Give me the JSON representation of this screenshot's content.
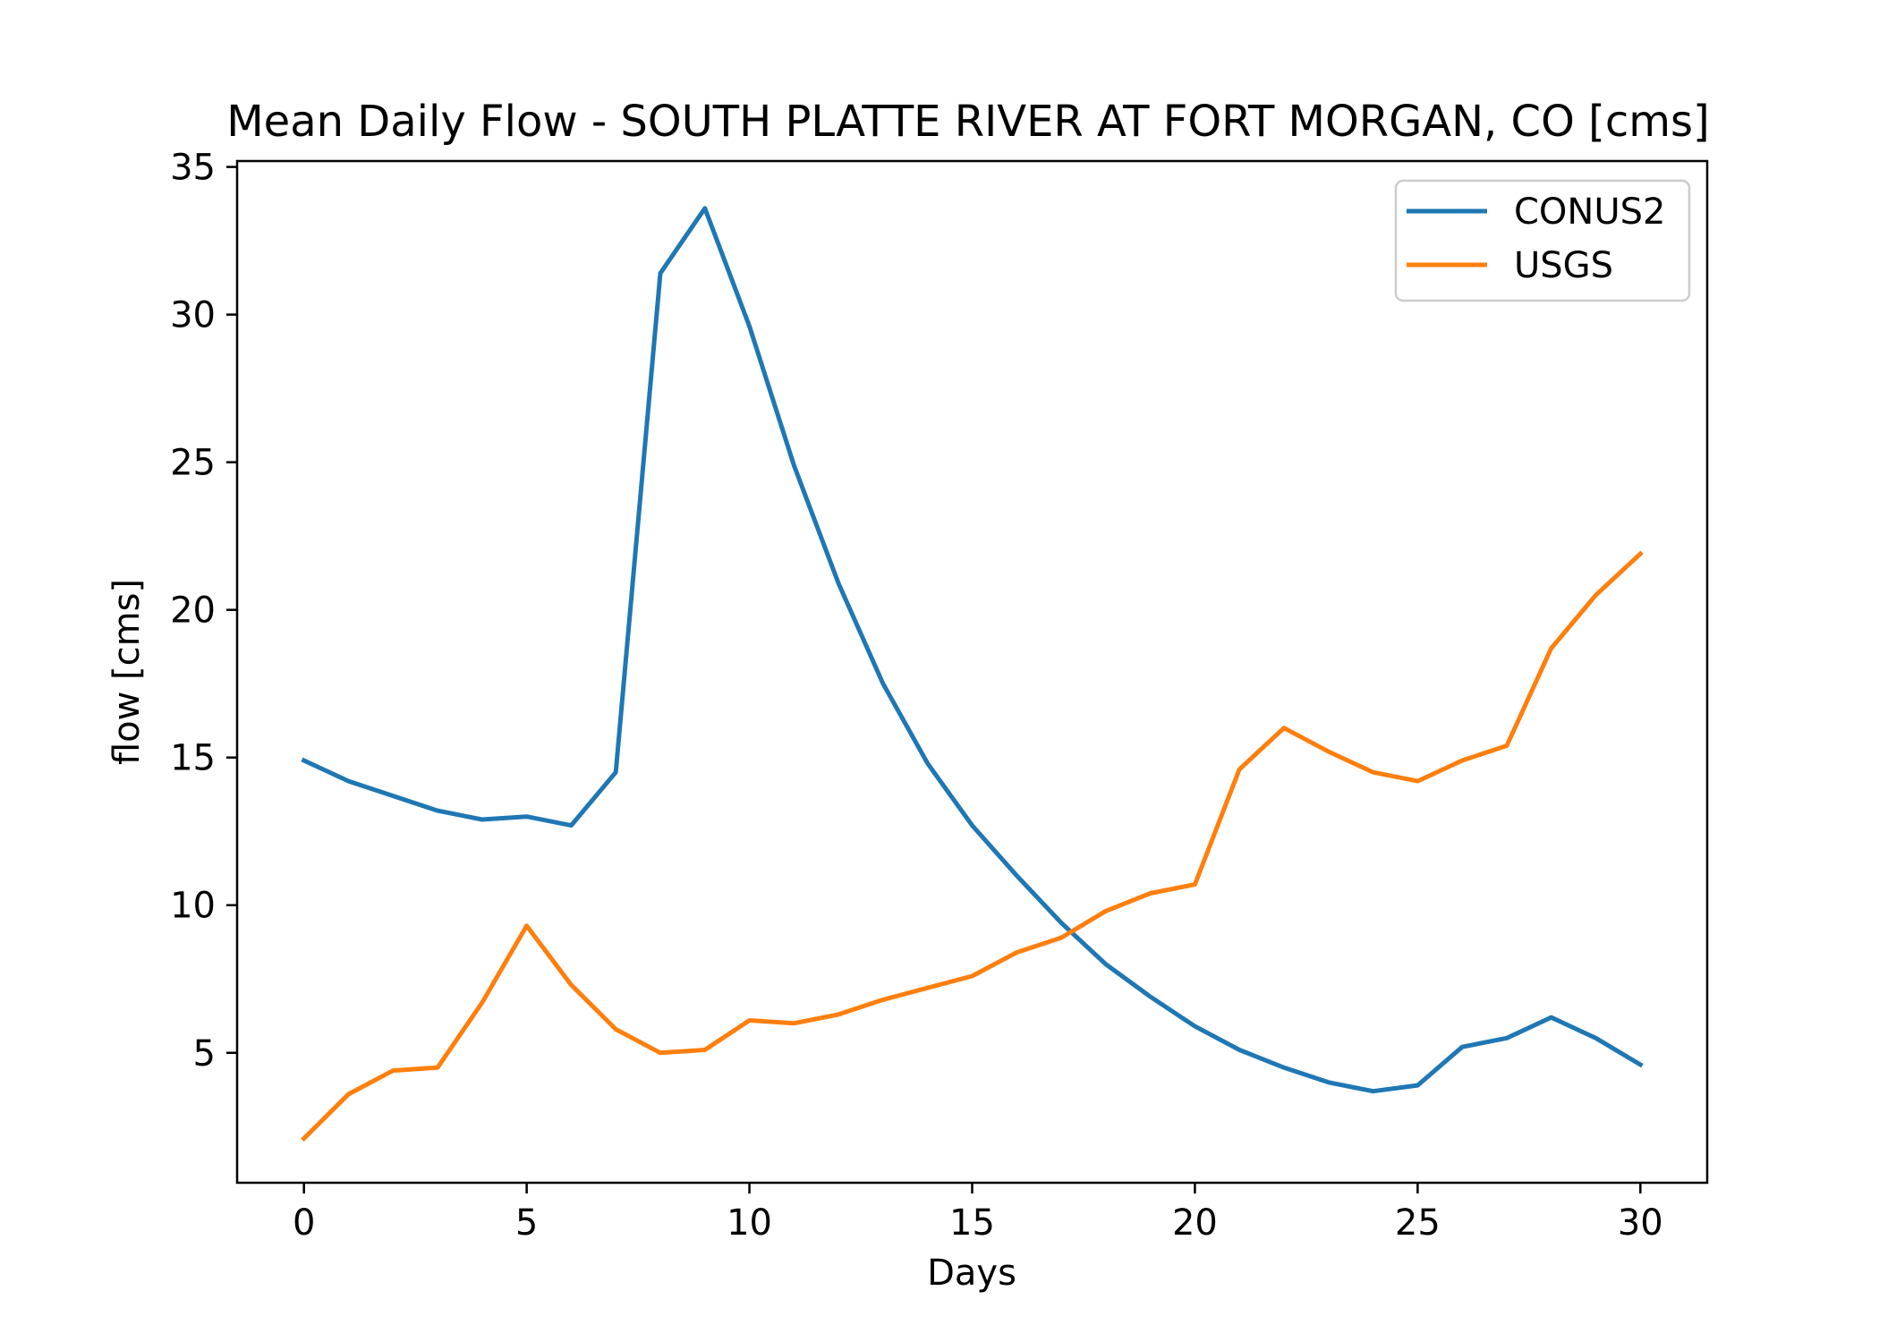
{
  "chart_data": {
    "type": "line",
    "title": "Mean Daily Flow - SOUTH PLATTE RIVER AT FORT MORGAN, CO [cms]",
    "xlabel": "Days",
    "ylabel": "flow [cms]",
    "xlim": [
      -1.5,
      31.5
    ],
    "ylim": [
      0.6,
      35.2
    ],
    "xticks": [
      0,
      5,
      10,
      15,
      20,
      25,
      30
    ],
    "yticks": [
      5,
      10,
      15,
      20,
      25,
      30,
      35
    ],
    "grid": false,
    "legend_position": "top-right",
    "x": [
      0,
      1,
      2,
      3,
      4,
      5,
      6,
      7,
      8,
      9,
      10,
      11,
      12,
      13,
      14,
      15,
      16,
      17,
      18,
      19,
      20,
      21,
      22,
      23,
      24,
      25,
      26,
      27,
      28,
      29,
      30
    ],
    "series": [
      {
        "name": "CONUS2",
        "color": "#1f77b4",
        "values": [
          14.9,
          14.2,
          13.7,
          13.2,
          12.9,
          13.0,
          12.7,
          14.5,
          31.4,
          33.6,
          29.6,
          24.9,
          20.9,
          17.5,
          14.8,
          12.7,
          11.0,
          9.4,
          8.0,
          6.9,
          5.9,
          5.1,
          4.5,
          4.0,
          3.7,
          3.9,
          5.2,
          5.5,
          6.2,
          5.5,
          4.6
        ]
      },
      {
        "name": "USGS",
        "color": "#ff7f0e",
        "values": [
          2.1,
          3.6,
          4.4,
          4.5,
          6.7,
          9.3,
          7.3,
          5.8,
          5.0,
          5.1,
          6.1,
          6.0,
          6.3,
          6.8,
          7.2,
          7.6,
          8.4,
          8.9,
          9.8,
          10.4,
          10.7,
          14.6,
          16.0,
          15.2,
          14.5,
          14.2,
          14.9,
          15.4,
          18.7,
          20.5,
          21.9
        ]
      }
    ]
  }
}
